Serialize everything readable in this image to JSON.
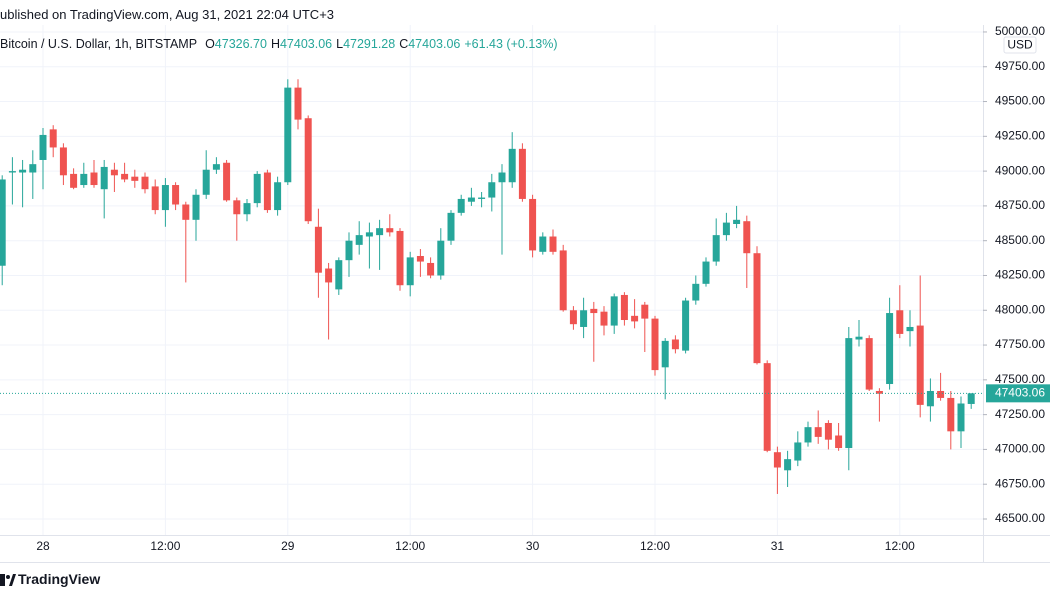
{
  "published": "ublished on TradingView.com, Aug 31, 2021 22:04 UTC+3",
  "brand": "TradingView",
  "chart_data": {
    "type": "candlestick",
    "symbol": "Bitcoin / U.S. Dollar, 1h, BITSTAMP",
    "ohlc_legend": [
      {
        "key": "O",
        "value": "47326.70"
      },
      {
        "key": "H",
        "value": "47403.06"
      },
      {
        "key": "L",
        "value": "47291.28"
      },
      {
        "key": "C",
        "value": "47403.06"
      }
    ],
    "change": "+61.43 (+0.13%)",
    "currency": "USD",
    "up_color": "#26a69a",
    "down_color": "#ef5350",
    "grid": true,
    "categories": [
      null,
      null,
      null,
      null,
      "28",
      null,
      null,
      null,
      null,
      null,
      null,
      null,
      null,
      null,
      null,
      null,
      "12:00",
      null,
      null,
      null,
      null,
      null,
      null,
      null,
      null,
      null,
      null,
      null,
      "29",
      null,
      null,
      null,
      null,
      null,
      null,
      null,
      null,
      null,
      null,
      null,
      "12:00",
      null,
      null,
      null,
      null,
      null,
      null,
      null,
      null,
      null,
      null,
      null,
      "30",
      null,
      null,
      null,
      null,
      null,
      null,
      null,
      null,
      null,
      null,
      null,
      "12:00",
      null,
      null,
      null,
      null,
      null,
      null,
      null,
      null,
      null,
      null,
      null,
      "31",
      null,
      null,
      null,
      null,
      null,
      null,
      null,
      null,
      null,
      null,
      null,
      "12:00",
      null,
      null,
      null,
      null,
      null,
      null,
      null
    ],
    "open": [
      48320,
      48990,
      48990,
      48990,
      49080,
      49300,
      49170,
      48980,
      48900,
      48990,
      48870,
      49010,
      48980,
      48960,
      48960,
      48890,
      48720,
      48900,
      48760,
      48650,
      48830,
      49010,
      49060,
      48790,
      48690,
      48770,
      48990,
      48720,
      48920,
      49600,
      49380,
      48600,
      48300,
      48150,
      48360,
      48470,
      48530,
      48540,
      48590,
      48570,
      48180,
      48390,
      48340,
      48250,
      48500,
      48700,
      48780,
      48800,
      48810,
      48920,
      48920,
      49160,
      48800,
      48420,
      48530,
      48430,
      48000,
      47880,
      48010,
      47990,
      47890,
      48110,
      47960,
      48040,
      47940,
      47590,
      47790,
      47710,
      48070,
      48190,
      48350,
      48540,
      48620,
      48640,
      48410,
      47620,
      46980,
      46850,
      46920,
      47050,
      47160,
      47190,
      47100,
      47010,
      47790,
      47800,
      47420,
      47470,
      48000,
      47850,
      47890,
      47310,
      47420,
      47370,
      47130,
      47326.7
    ],
    "high": [
      48970,
      49100,
      49080,
      49150,
      49310,
      49330,
      49200,
      49020,
      49060,
      49080,
      49080,
      49060,
      49060,
      49010,
      48990,
      48940,
      48950,
      48920,
      48780,
      48870,
      49150,
      49100,
      49080,
      48810,
      48800,
      49000,
      49010,
      48960,
      49660,
      49660,
      49400,
      48730,
      48340,
      48380,
      48560,
      48640,
      48630,
      48650,
      48690,
      48590,
      48420,
      48440,
      48380,
      48590,
      48720,
      48830,
      48880,
      48850,
      48980,
      49050,
      49280,
      49200,
      48830,
      48560,
      48580,
      48470,
      48030,
      48090,
      48060,
      48030,
      48120,
      48130,
      48080,
      48060,
      47960,
      47800,
      47820,
      48090,
      48250,
      48380,
      48660,
      48700,
      48750,
      48680,
      48460,
      47640,
      47020,
      46990,
      47130,
      47200,
      47280,
      47210,
      47190,
      47880,
      47930,
      47820,
      47440,
      48090,
      48180,
      48000,
      48250,
      47510,
      47550,
      47420,
      47380,
      47403.06
    ],
    "low": [
      48180,
      48760,
      48740,
      48800,
      48870,
      49100,
      48900,
      48870,
      48880,
      48880,
      48660,
      48850,
      48920,
      48880,
      48840,
      48690,
      48600,
      48720,
      48200,
      48500,
      48800,
      48980,
      48780,
      48500,
      48640,
      48740,
      48700,
      48680,
      48900,
      49300,
      48620,
      48090,
      47790,
      48110,
      48240,
      48400,
      48300,
      48290,
      48530,
      48140,
      48100,
      48240,
      48230,
      48220,
      48470,
      48680,
      48750,
      48740,
      48710,
      48400,
      48880,
      48780,
      48380,
      48400,
      48400,
      47990,
      47860,
      47800,
      47630,
      47820,
      47830,
      47890,
      47870,
      47700,
      47530,
      47360,
      47690,
      47690,
      48040,
      48170,
      48320,
      48500,
      48590,
      48160,
      47610,
      46980,
      46680,
      46730,
      46880,
      47020,
      47040,
      47000,
      46990,
      46850,
      47740,
      47420,
      47200,
      47430,
      47800,
      47740,
      47230,
      47200,
      47350,
      47000,
      47010,
      47291.28
    ],
    "close": [
      48940,
      49000,
      49010,
      49050,
      49260,
      49170,
      48970,
      48880,
      48980,
      48900,
      49030,
      48970,
      48940,
      48930,
      48870,
      48720,
      48900,
      48760,
      48650,
      48830,
      49010,
      49050,
      48790,
      48690,
      48770,
      48980,
      48720,
      48920,
      49600,
      49370,
      48640,
      48270,
      48200,
      48360,
      48500,
      48540,
      48560,
      48590,
      48560,
      48180,
      48380,
      48350,
      48250,
      48500,
      48700,
      48800,
      48810,
      48810,
      48920,
      48990,
      49160,
      48800,
      48430,
      48530,
      48420,
      48000,
      47900,
      48000,
      47980,
      47890,
      48100,
      47930,
      47920,
      47940,
      47570,
      47780,
      47720,
      48070,
      48190,
      48350,
      48540,
      48630,
      48650,
      48410,
      47620,
      46990,
      46870,
      46930,
      47050,
      47160,
      47090,
      47070,
      47010,
      47800,
      47810,
      47430,
      47400,
      47980,
      47830,
      47880,
      47320,
      47420,
      47370,
      47130,
      47330,
      47403.06
    ],
    "last_price": {
      "value": 47403.06,
      "label": "47403.06"
    },
    "ylim": [
      46385,
      50050
    ],
    "yticks": [
      {
        "value": 46500,
        "label": "46500.00"
      },
      {
        "value": 46750,
        "label": "46750.00"
      },
      {
        "value": 47000,
        "label": "47000.00"
      },
      {
        "value": 47250,
        "label": "47250.00"
      },
      {
        "value": 47500,
        "label": "47500.00"
      },
      {
        "value": 47750,
        "label": "47750.00"
      },
      {
        "value": 48000,
        "label": "48000.00"
      },
      {
        "value": 48250,
        "label": "48250.00"
      },
      {
        "value": 48500,
        "label": "48500.00"
      },
      {
        "value": 48750,
        "label": "48750.00"
      },
      {
        "value": 49000,
        "label": "49000.00"
      },
      {
        "value": 49250,
        "label": "49250.00"
      },
      {
        "value": 49500,
        "label": "49500.00"
      },
      {
        "value": 49750,
        "label": "49750.00"
      },
      {
        "value": 50000,
        "label": "50000.00"
      }
    ]
  }
}
